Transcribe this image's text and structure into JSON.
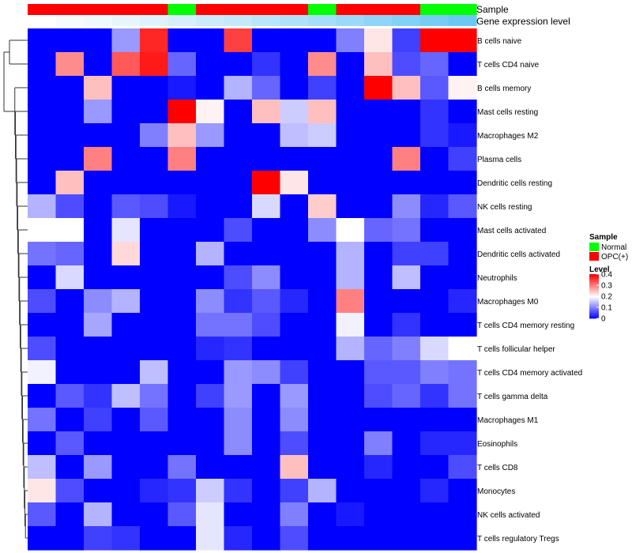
{
  "chart_data": {
    "type": "heatmap",
    "title": "",
    "annotation_rows": [
      {
        "name": "Sample",
        "label": "Sample"
      },
      {
        "name": "Gene expression level",
        "label": "Gene expression level"
      }
    ],
    "sample_groups": [
      "OPC(+)",
      "OPC(+)",
      "OPC(+)",
      "OPC(+)",
      "OPC(+)",
      "Normal",
      "OPC(+)",
      "OPC(+)",
      "OPC(+)",
      "OPC(+)",
      "Normal",
      "OPC(+)",
      "OPC(+)",
      "OPC(+)",
      "Normal",
      "Normal"
    ],
    "expression_level_annotation": [
      0.0,
      0.03,
      0.05,
      0.08,
      0.11,
      0.14,
      0.17,
      0.2,
      0.23,
      0.27,
      0.3,
      0.34,
      0.38,
      0.42,
      0.46,
      0.5
    ],
    "rows": [
      "B cells naive",
      "T cells CD4 naive",
      "B cells memory",
      "Mast cells resting",
      "Macrophages M2",
      "Plasma cells",
      "Dendritic cells resting",
      "NK cells resting",
      "Mast cells activated",
      "Dendritic cells activated",
      "Neutrophils",
      "Macrophages M0",
      "T cells CD4 memory resting",
      "T cells follicular helper",
      "T cells CD4 memory activated",
      "T cells gamma delta",
      "Macrophages M1",
      "Eosinophils",
      "T cells CD8",
      "Monocytes",
      "NK cells activated",
      "T cells regulatory  Tregs"
    ],
    "values": [
      [
        0.0,
        0.0,
        0.0,
        0.12,
        0.37,
        0.0,
        0.0,
        0.35,
        0.0,
        0.0,
        0.0,
        0.1,
        0.22,
        0.05,
        0.4,
        0.4
      ],
      [
        0.0,
        0.29,
        0.0,
        0.33,
        0.38,
        0.08,
        0.0,
        0.0,
        0.04,
        0.0,
        0.29,
        0.0,
        0.25,
        0.06,
        0.08,
        0.0
      ],
      [
        0.0,
        0.0,
        0.25,
        0.0,
        0.0,
        0.02,
        0.0,
        0.14,
        0.08,
        0.0,
        0.05,
        0.0,
        0.4,
        0.25,
        0.07,
        0.21
      ],
      [
        0.0,
        0.0,
        0.12,
        0.0,
        0.0,
        0.4,
        0.21,
        0.0,
        0.25,
        0.16,
        0.25,
        0.0,
        0.0,
        0.0,
        0.04,
        0.0
      ],
      [
        0.0,
        0.0,
        0.0,
        0.0,
        0.1,
        0.25,
        0.12,
        0.0,
        0.0,
        0.15,
        0.16,
        0.0,
        0.0,
        0.0,
        0.04,
        0.02
      ],
      [
        0.0,
        0.0,
        0.3,
        0.0,
        0.0,
        0.3,
        0.0,
        0.0,
        0.0,
        0.0,
        0.0,
        0.0,
        0.0,
        0.3,
        0.0,
        0.05
      ],
      [
        0.0,
        0.25,
        0.0,
        0.0,
        0.0,
        0.0,
        0.0,
        0.0,
        0.4,
        0.22,
        0.0,
        0.0,
        0.0,
        0.0,
        0.0,
        0.0
      ],
      [
        0.14,
        0.06,
        0.0,
        0.07,
        0.06,
        0.02,
        0.0,
        0.0,
        0.17,
        0.0,
        0.24,
        0.0,
        0.0,
        0.11,
        0.03,
        0.07
      ],
      [
        0.2,
        0.2,
        0.0,
        0.18,
        0.0,
        0.0,
        0.0,
        0.06,
        0.0,
        0.0,
        0.11,
        0.2,
        0.08,
        0.09,
        0.0,
        0.0
      ],
      [
        0.09,
        0.08,
        0.0,
        0.23,
        0.0,
        0.0,
        0.14,
        0.0,
        0.0,
        0.0,
        0.0,
        0.14,
        0.0,
        0.05,
        0.05,
        0.0
      ],
      [
        0.0,
        0.17,
        0.0,
        0.0,
        0.0,
        0.0,
        0.0,
        0.06,
        0.11,
        0.0,
        0.0,
        0.14,
        0.0,
        0.15,
        0.0,
        0.0
      ],
      [
        0.06,
        0.0,
        0.11,
        0.14,
        0.0,
        0.0,
        0.11,
        0.04,
        0.07,
        0.03,
        0.0,
        0.3,
        0.0,
        0.0,
        0.0,
        0.03
      ],
      [
        0.0,
        0.0,
        0.13,
        0.0,
        0.0,
        0.0,
        0.09,
        0.09,
        0.06,
        0.0,
        0.0,
        0.19,
        0.0,
        0.04,
        0.0,
        0.0
      ],
      [
        0.06,
        0.0,
        0.0,
        0.0,
        0.0,
        0.0,
        0.03,
        0.04,
        0.0,
        0.0,
        0.0,
        0.14,
        0.08,
        0.1,
        0.17,
        0.2
      ],
      [
        0.19,
        0.0,
        0.0,
        0.0,
        0.15,
        0.0,
        0.0,
        0.12,
        0.11,
        0.05,
        0.0,
        0.0,
        0.07,
        0.07,
        0.1,
        0.09
      ],
      [
        0.0,
        0.07,
        0.04,
        0.15,
        0.09,
        0.0,
        0.05,
        0.12,
        0.0,
        0.12,
        0.0,
        0.0,
        0.06,
        0.08,
        0.04,
        0.09
      ],
      [
        0.09,
        0.0,
        0.05,
        0.0,
        0.07,
        0.0,
        0.0,
        0.11,
        0.0,
        0.11,
        0.0,
        0.0,
        0.0,
        0.0,
        0.0,
        0.0
      ],
      [
        0.0,
        0.07,
        0.0,
        0.0,
        0.0,
        0.0,
        0.0,
        0.11,
        0.0,
        0.06,
        0.0,
        0.0,
        0.1,
        0.0,
        0.03,
        0.03
      ],
      [
        0.15,
        0.0,
        0.12,
        0.0,
        0.0,
        0.09,
        0.0,
        0.0,
        0.0,
        0.25,
        0.0,
        0.0,
        0.03,
        0.0,
        0.0,
        0.06
      ],
      [
        0.22,
        0.06,
        0.0,
        0.0,
        0.03,
        0.04,
        0.16,
        0.04,
        0.0,
        0.05,
        0.14,
        0.0,
        0.0,
        0.0,
        0.03,
        0.0
      ],
      [
        0.07,
        0.0,
        0.14,
        0.0,
        0.0,
        0.07,
        0.18,
        0.0,
        0.0,
        0.1,
        0.0,
        0.02,
        0.0,
        0.0,
        0.0,
        0.0
      ],
      [
        0.0,
        0.0,
        0.05,
        0.04,
        0.0,
        0.0,
        0.18,
        0.03,
        0.0,
        0.06,
        0.0,
        0.0,
        0.0,
        0.0,
        0.0,
        0.0
      ]
    ],
    "color_scale": {
      "min": 0,
      "mid": 0.2,
      "max": 0.4,
      "low_color": "#0000ff",
      "mid_color": "#ffffff",
      "high_color": "#ff0000"
    },
    "annotation_level_colors": {
      "low": "#ffffff",
      "high": "#6ac8f4"
    },
    "legend_sample": {
      "title": "Sample",
      "entries": [
        {
          "label": "Normal",
          "color": "#00ff00"
        },
        {
          "label": "OPC(+)",
          "color": "#ff0000"
        }
      ]
    },
    "legend_level": {
      "title": "Level",
      "ticks": [
        {
          "label": "0.4",
          "value": 0.4
        },
        {
          "label": "0.3",
          "value": 0.3
        },
        {
          "label": "0.2",
          "value": 0.2
        },
        {
          "label": "0.1",
          "value": 0.1
        },
        {
          "label": "0",
          "value": 0
        }
      ]
    },
    "row_dendrogram": true,
    "legend_position": "right"
  }
}
